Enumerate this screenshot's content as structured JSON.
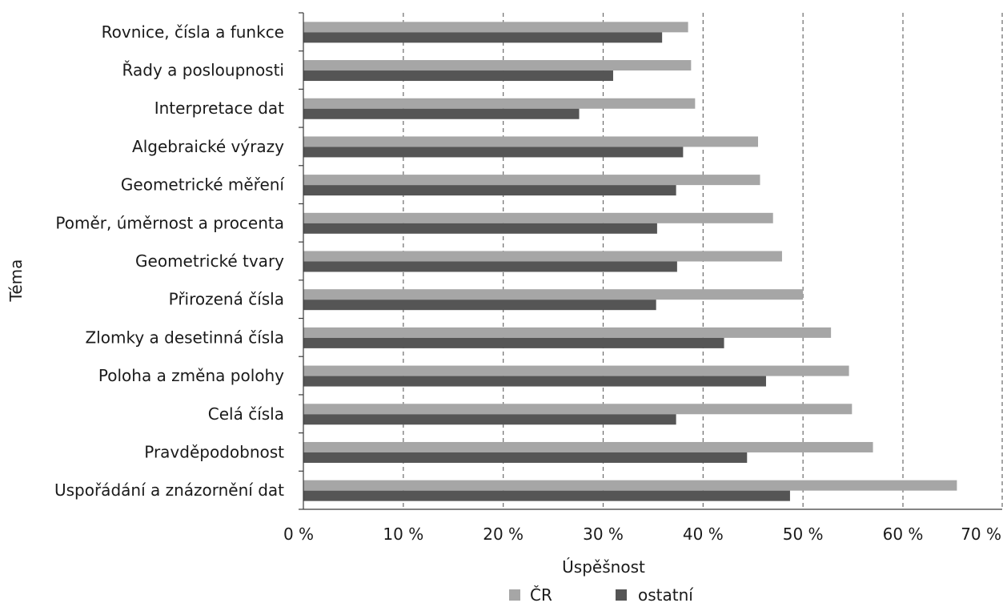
{
  "chart_data": {
    "type": "bar",
    "orientation": "horizontal",
    "categories": [
      "Rovnice, čísla a funkce",
      "Řady a posloupnosti",
      "Interpretace dat",
      "Algebraické výrazy",
      "Geometrické měření",
      "Poměr, úměrnost a procenta",
      "Geometrické tvary",
      "Přirozená čísla",
      "Zlomky a desetinná čísla",
      "Poloha a změna polohy",
      "Celá čísla",
      "Pravděpodobnost",
      "Uspořádání a znázornění dat"
    ],
    "series": [
      {
        "name": "ČR",
        "color": "#a6a6a6",
        "values": [
          38.5,
          38.8,
          39.2,
          45.5,
          45.7,
          47.0,
          47.9,
          50.0,
          52.8,
          54.6,
          54.9,
          57.0,
          65.4
        ]
      },
      {
        "name": "ostatní",
        "color": "#555555",
        "values": [
          35.9,
          31.0,
          27.6,
          38.0,
          37.3,
          35.4,
          37.4,
          35.3,
          42.1,
          46.3,
          37.3,
          44.4,
          48.7
        ]
      }
    ],
    "xlabel": "Úspěšnost",
    "ylabel": "Téma",
    "xlim": [
      0,
      70
    ],
    "x_ticks": [
      "0 %",
      "10 %",
      "20 %",
      "30 %",
      "40 %",
      "50 %",
      "60 %",
      "70 %"
    ],
    "grid": "vertical-dashed",
    "legend_position": "bottom"
  }
}
